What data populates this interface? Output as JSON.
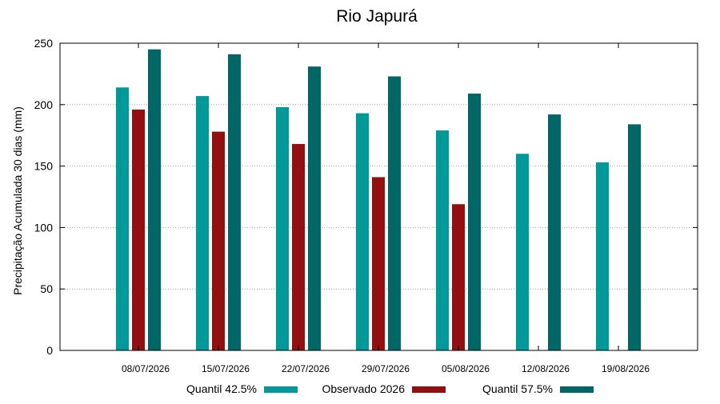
{
  "chart_data": {
    "type": "bar",
    "title": "Rio Japurá",
    "xlabel": "",
    "ylabel": "Precipitação Acumulada 30 dias (mm)",
    "ylim": [
      0,
      250
    ],
    "yticks": [
      0,
      50,
      100,
      150,
      200,
      250
    ],
    "grid": "horizontal-dotted",
    "legend_position": "bottom",
    "categories": [
      "08/07/2026",
      "15/07/2026",
      "22/07/2026",
      "29/07/2026",
      "05/08/2026",
      "12/08/2026",
      "19/08/2026"
    ],
    "series": [
      {
        "name": "Quantil 42.5%",
        "color": "#009999",
        "values": [
          214,
          207,
          198,
          193,
          179,
          160,
          153
        ]
      },
      {
        "name": "Observado 2026",
        "color": "#941010",
        "values": [
          196,
          178,
          168,
          141,
          119,
          null,
          null
        ]
      },
      {
        "name": "Quantil 57.5%",
        "color": "#006666",
        "values": [
          245,
          241,
          231,
          223,
          209,
          192,
          184
        ]
      }
    ]
  }
}
